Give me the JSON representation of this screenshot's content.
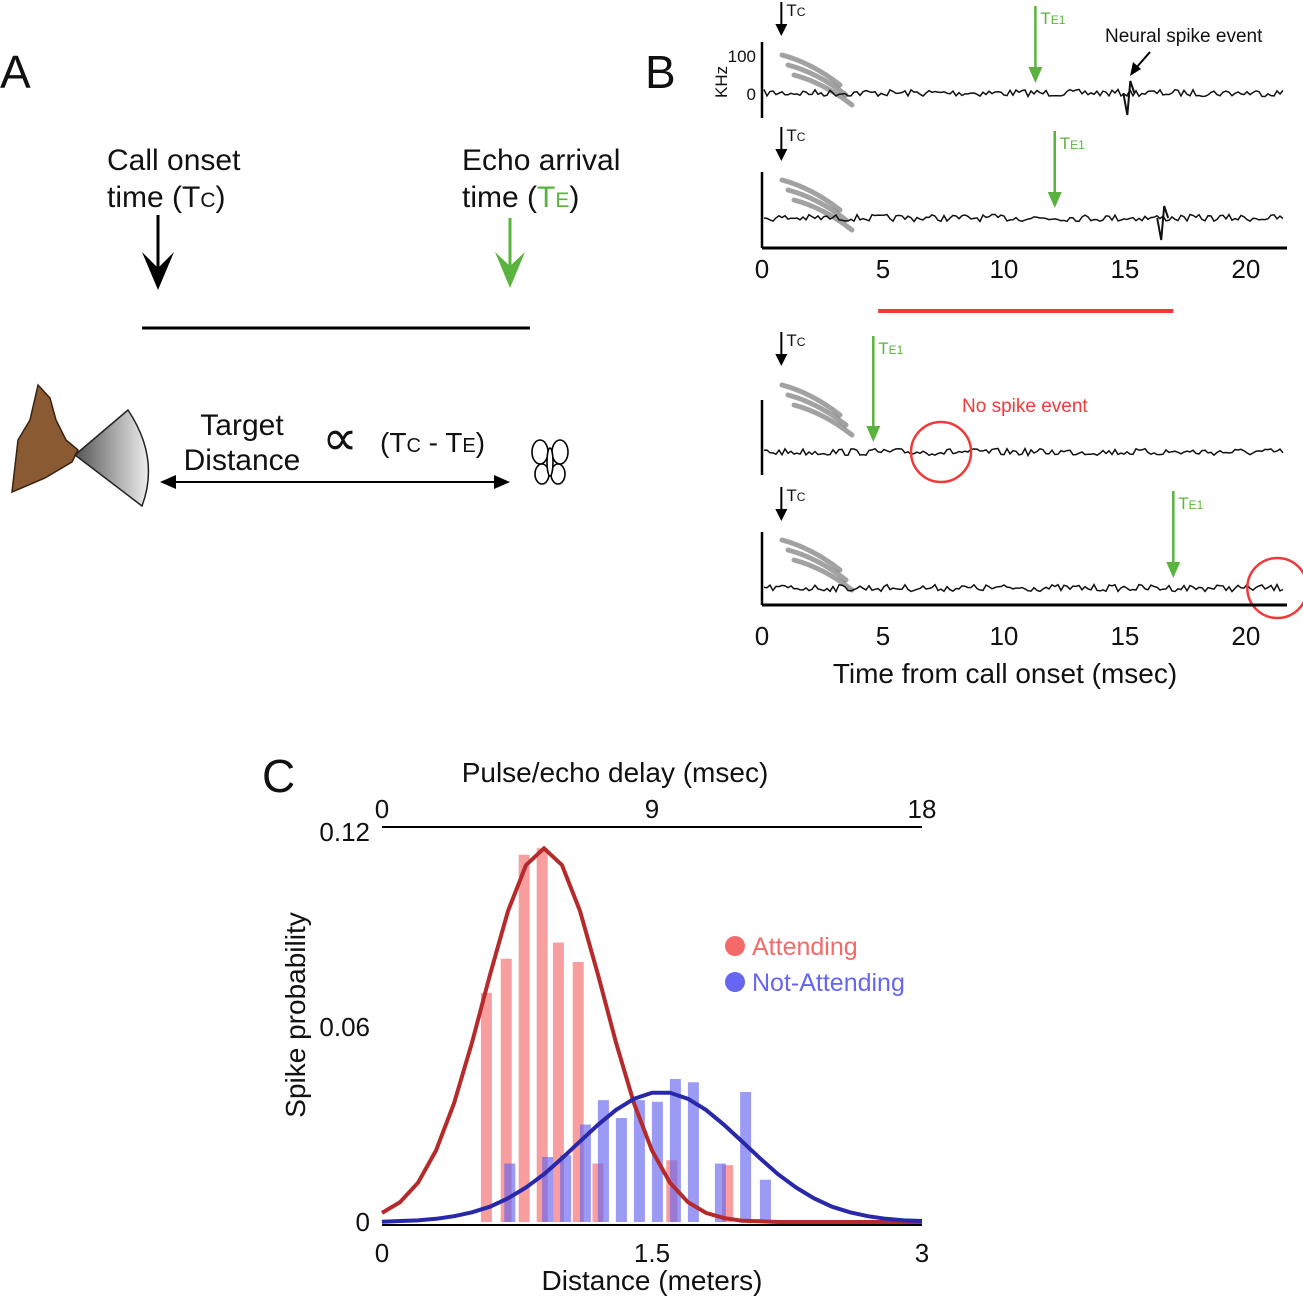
{
  "panel_a": {
    "label": "A",
    "call_onset": [
      "Call onset",
      "time (T",
      "C",
      ")"
    ],
    "echo_arrival": [
      "Echo arrival",
      "time (",
      "T",
      "E",
      ")"
    ],
    "target": [
      "Target",
      "Distance"
    ],
    "proportional": "∝",
    "formula": [
      "(T",
      "C",
      " - T",
      "E",
      ")"
    ]
  },
  "panel_b": {
    "label": "B",
    "khz": "KHz",
    "khz_ticks": [
      100,
      0
    ],
    "tc": [
      "T",
      "C"
    ],
    "te1": [
      "T",
      "E1"
    ],
    "neural_spike": "Neural spike event",
    "no_spike": "No spike event",
    "xlabel": "Time from call onset (msec)",
    "xlim": [
      0,
      21.7
    ],
    "xticks": [
      0,
      5,
      10,
      15,
      20
    ],
    "tc_time": 0.8,
    "highlight": [
      4.8,
      17
    ],
    "traces": [
      {
        "te1": 11.3,
        "spike": 15.1
      },
      {
        "te1": 12.1,
        "spike": 16.5
      },
      {
        "te1": 4.6,
        "circle": 7.4
      },
      {
        "te1": 17,
        "circle": 21.3
      }
    ]
  },
  "chart_data": {
    "type": "bar",
    "label": "C",
    "xlabel": "Distance (meters)",
    "x2label": "Pulse/echo delay (msec)",
    "ylabel": "Spike probability",
    "xlim": [
      0,
      3
    ],
    "xticks": [
      0,
      1.5,
      3
    ],
    "x2lim": [
      0,
      18
    ],
    "x2ticks": [
      0,
      9,
      18
    ],
    "ylim": [
      0,
      0.12
    ],
    "yticks": [
      0,
      0.06,
      0.12
    ],
    "series": [
      {
        "name": "Attending",
        "color": "#f46a6a",
        "x": [
          0.58,
          0.69,
          0.79,
          0.89,
          0.98,
          1.09,
          1.2,
          1.61,
          1.92
        ],
        "values": [
          0.0705,
          0.081,
          0.113,
          0.115,
          0.086,
          0.08,
          0.018,
          0.019,
          0.0175
        ]
      },
      {
        "name": "Not-Attending",
        "color": "#6666f0",
        "x": [
          0.71,
          0.92,
          1.02,
          1.13,
          1.23,
          1.33,
          1.43,
          1.53,
          1.63,
          1.73,
          1.88,
          2.02,
          2.13
        ],
        "values": [
          0.018,
          0.02,
          0.0206,
          0.03,
          0.0375,
          0.032,
          0.0375,
          0.037,
          0.044,
          0.043,
          0.018,
          0.04,
          0.013
        ]
      }
    ],
    "fits": {
      "x": [
        0,
        0.1,
        0.2,
        0.3,
        0.4,
        0.5,
        0.6,
        0.7,
        0.8,
        0.9,
        1,
        1.1,
        1.2,
        1.3,
        1.4,
        1.5,
        1.6,
        1.7,
        1.8,
        1.9,
        2,
        2.1,
        2.2,
        2.3,
        2.4,
        2.5,
        2.6,
        2.7,
        2.8,
        2.9,
        3
      ],
      "series": [
        {
          "color": "#b52a2a",
          "values": [
            0.0028,
            0.0061,
            0.0121,
            0.022,
            0.0365,
            0.0552,
            0.0761,
            0.0957,
            0.1098,
            0.115,
            0.1098,
            0.0957,
            0.0761,
            0.0552,
            0.0365,
            0.022,
            0.0121,
            0.0061,
            0.0028,
            0.0012,
            0.0004,
            0.0002,
            0,
            0,
            0,
            0,
            0,
            0,
            0,
            0,
            0
          ]
        },
        {
          "color": "#2828a8",
          "values": [
            0.0001,
            0.0003,
            0.0005,
            0.001,
            0.0018,
            0.003,
            0.0047,
            0.0073,
            0.0106,
            0.0147,
            0.0196,
            0.0248,
            0.0299,
            0.0345,
            0.0379,
            0.0398,
            0.0398,
            0.0379,
            0.0345,
            0.0299,
            0.0248,
            0.0196,
            0.0147,
            0.0106,
            0.0073,
            0.0047,
            0.003,
            0.0018,
            0.001,
            0.0005,
            0.0003
          ]
        }
      ]
    }
  }
}
